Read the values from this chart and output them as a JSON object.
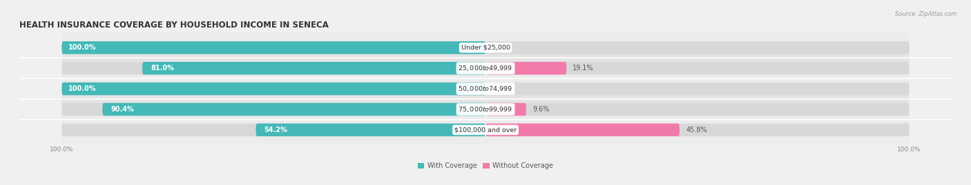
{
  "title": "HEALTH INSURANCE COVERAGE BY HOUSEHOLD INCOME IN SENECA",
  "source": "Source: ZipAtlas.com",
  "categories": [
    "Under $25,000",
    "$25,000 to $49,999",
    "$50,000 to $74,999",
    "$75,000 to $99,999",
    "$100,000 and over"
  ],
  "with_coverage": [
    100.0,
    81.0,
    100.0,
    90.4,
    54.2
  ],
  "without_coverage": [
    0.0,
    19.1,
    0.0,
    9.6,
    45.8
  ],
  "color_with": "#45b8b8",
  "color_without": "#f27aaa",
  "bg_color": "#f0f0f0",
  "bar_bg_color": "#dcdcdc",
  "row_bg_color": "#e8e8e8",
  "title_fontsize": 8.5,
  "label_fontsize": 7.0,
  "cat_fontsize": 6.8,
  "tick_fontsize": 6.5,
  "source_fontsize": 6.0,
  "bar_height": 0.62,
  "total_width": 100,
  "legend_label_with": "With Coverage",
  "legend_label_without": "Without Coverage",
  "x_tick_label_left": "100.0%",
  "x_tick_label_right": "100.0%",
  "row_colors": [
    "#ebebeb",
    "#e0e0e0",
    "#ebebeb",
    "#e0e0e0",
    "#ebebeb"
  ]
}
